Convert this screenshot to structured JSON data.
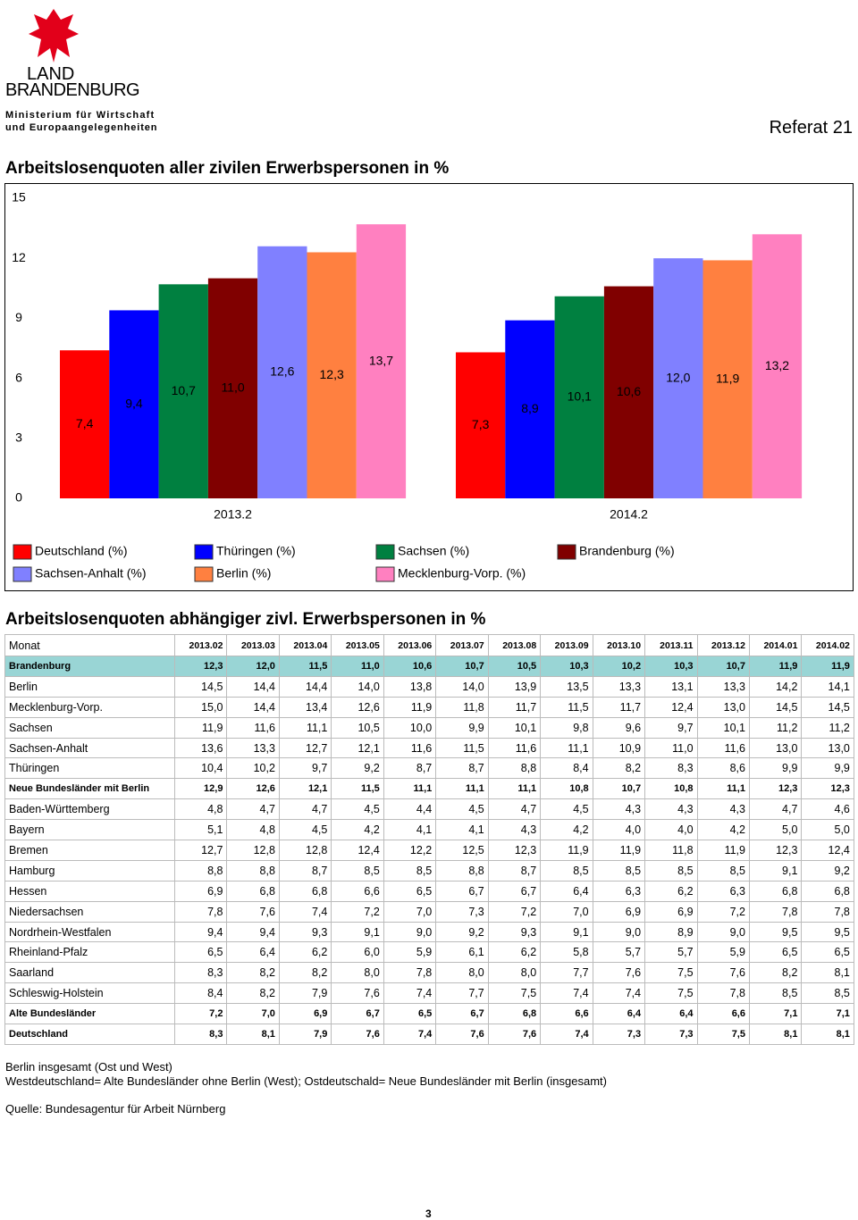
{
  "header": {
    "logo_line1": "LAND",
    "logo_line2": "BRANDENBURG",
    "ministry_line1": "Ministerium für Wirtschaft",
    "ministry_line2": "und Europaangelegenheiten",
    "department": "Referat 21"
  },
  "chart_data": {
    "type": "bar",
    "title": "Arbeitslosenquoten aller zivilen Erwerbspersonen in %",
    "categories": [
      "2013.2",
      "2014.2"
    ],
    "series": [
      {
        "name": "Deutschland (%)",
        "color": "#ff0000",
        "values": [
          7.4,
          7.3
        ],
        "value_labels": [
          "7,4",
          "7,3"
        ]
      },
      {
        "name": "Thüringen (%)",
        "color": "#0000ff",
        "values": [
          9.4,
          8.9
        ],
        "value_labels": [
          "9,4",
          "8,9"
        ]
      },
      {
        "name": "Sachsen (%)",
        "color": "#008040",
        "values": [
          10.7,
          10.1
        ],
        "value_labels": [
          "10,7",
          "10,1"
        ]
      },
      {
        "name": "Brandenburg (%)",
        "color": "#800000",
        "values": [
          11.0,
          10.6
        ],
        "value_labels": [
          "11,0",
          "10,6"
        ]
      },
      {
        "name": "Sachsen-Anhalt (%)",
        "color": "#8080ff",
        "values": [
          12.6,
          12.0
        ],
        "value_labels": [
          "12,6",
          "12,0"
        ]
      },
      {
        "name": "Berlin (%)",
        "color": "#ff8040",
        "values": [
          12.3,
          11.9
        ],
        "value_labels": [
          "12,3",
          "11,9"
        ]
      },
      {
        "name": "Mecklenburg-Vorp. (%)",
        "color": "#ff80c0",
        "values": [
          13.7,
          13.2
        ],
        "value_labels": [
          "13,7",
          "13,2"
        ]
      }
    ],
    "ylim": [
      0,
      15
    ],
    "yticks": [
      0,
      3,
      6,
      9,
      12,
      15
    ],
    "grid": false,
    "legend": "bottom"
  },
  "table": {
    "title": "Arbeitslosenquoten abhängiger zivl. Erwerbspersonen in %",
    "header": [
      "Monat",
      "2013.02",
      "2013.03",
      "2013.04",
      "2013.05",
      "2013.06",
      "2013.07",
      "2013.08",
      "2013.09",
      "2013.10",
      "2013.11",
      "2013.12",
      "2014.01",
      "2014.02"
    ],
    "rows": [
      [
        "Brandenburg",
        "12,3",
        "12,0",
        "11,5",
        "11,0",
        "10,6",
        "10,7",
        "10,5",
        "10,3",
        "10,2",
        "10,3",
        "10,7",
        "11,9",
        "11,9"
      ],
      [
        "Berlin",
        "14,5",
        "14,4",
        "14,4",
        "14,0",
        "13,8",
        "14,0",
        "13,9",
        "13,5",
        "13,3",
        "13,1",
        "13,3",
        "14,2",
        "14,1"
      ],
      [
        "Mecklenburg-Vorp.",
        "15,0",
        "14,4",
        "13,4",
        "12,6",
        "11,9",
        "11,8",
        "11,7",
        "11,5",
        "11,7",
        "12,4",
        "13,0",
        "14,5",
        "14,5"
      ],
      [
        "Sachsen",
        "11,9",
        "11,6",
        "11,1",
        "10,5",
        "10,0",
        "9,9",
        "10,1",
        "9,8",
        "9,6",
        "9,7",
        "10,1",
        "11,2",
        "11,2"
      ],
      [
        "Sachsen-Anhalt",
        "13,6",
        "13,3",
        "12,7",
        "12,1",
        "11,6",
        "11,5",
        "11,6",
        "11,1",
        "10,9",
        "11,0",
        "11,6",
        "13,0",
        "13,0"
      ],
      [
        "Thüringen",
        "10,4",
        "10,2",
        "9,7",
        "9,2",
        "8,7",
        "8,7",
        "8,8",
        "8,4",
        "8,2",
        "8,3",
        "8,6",
        "9,9",
        "9,9"
      ],
      [
        "Neue Bundesländer mit Berlin",
        "12,9",
        "12,6",
        "12,1",
        "11,5",
        "11,1",
        "11,1",
        "11,1",
        "10,8",
        "10,7",
        "10,8",
        "11,1",
        "12,3",
        "12,3"
      ],
      [
        "Baden-Württemberg",
        "4,8",
        "4,7",
        "4,7",
        "4,5",
        "4,4",
        "4,5",
        "4,7",
        "4,5",
        "4,3",
        "4,3",
        "4,3",
        "4,7",
        "4,6"
      ],
      [
        "Bayern",
        "5,1",
        "4,8",
        "4,5",
        "4,2",
        "4,1",
        "4,1",
        "4,3",
        "4,2",
        "4,0",
        "4,0",
        "4,2",
        "5,0",
        "5,0"
      ],
      [
        "Bremen",
        "12,7",
        "12,8",
        "12,8",
        "12,4",
        "12,2",
        "12,5",
        "12,3",
        "11,9",
        "11,9",
        "11,8",
        "11,9",
        "12,3",
        "12,4"
      ],
      [
        "Hamburg",
        "8,8",
        "8,8",
        "8,7",
        "8,5",
        "8,5",
        "8,8",
        "8,7",
        "8,5",
        "8,5",
        "8,5",
        "8,5",
        "9,1",
        "9,2"
      ],
      [
        "Hessen",
        "6,9",
        "6,8",
        "6,8",
        "6,6",
        "6,5",
        "6,7",
        "6,7",
        "6,4",
        "6,3",
        "6,2",
        "6,3",
        "6,8",
        "6,8"
      ],
      [
        "Niedersachsen",
        "7,8",
        "7,6",
        "7,4",
        "7,2",
        "7,0",
        "7,3",
        "7,2",
        "7,0",
        "6,9",
        "6,9",
        "7,2",
        "7,8",
        "7,8"
      ],
      [
        "Nordrhein-Westfalen",
        "9,4",
        "9,4",
        "9,3",
        "9,1",
        "9,0",
        "9,2",
        "9,3",
        "9,1",
        "9,0",
        "8,9",
        "9,0",
        "9,5",
        "9,5"
      ],
      [
        "Rheinland-Pfalz",
        "6,5",
        "6,4",
        "6,2",
        "6,0",
        "5,9",
        "6,1",
        "6,2",
        "5,8",
        "5,7",
        "5,7",
        "5,9",
        "6,5",
        "6,5"
      ],
      [
        "Saarland",
        "8,3",
        "8,2",
        "8,2",
        "8,0",
        "7,8",
        "8,0",
        "8,0",
        "7,7",
        "7,6",
        "7,5",
        "7,6",
        "8,2",
        "8,1"
      ],
      [
        "Schleswig-Holstein",
        "8,4",
        "8,2",
        "7,9",
        "7,6",
        "7,4",
        "7,7",
        "7,5",
        "7,4",
        "7,4",
        "7,5",
        "7,8",
        "8,5",
        "8,5"
      ],
      [
        "Alte Bundesländer",
        "7,2",
        "7,0",
        "6,9",
        "6,7",
        "6,5",
        "6,7",
        "6,8",
        "6,6",
        "6,4",
        "6,4",
        "6,6",
        "7,1",
        "7,1"
      ],
      [
        "Deutschland",
        "8,3",
        "8,1",
        "7,9",
        "7,6",
        "7,4",
        "7,6",
        "7,6",
        "7,4",
        "7,3",
        "7,3",
        "7,5",
        "8,1",
        "8,1"
      ]
    ]
  },
  "notes": [
    "Berlin insgesamt (Ost und West)",
    "Westdeutschland= Alte Bundesländer ohne Berlin (West); Ostdeutschald= Neue Bundesländer mit Berlin (insgesamt)",
    "Quelle: Bundesagentur für Arbeit Nürnberg"
  ],
  "page_number": "3"
}
